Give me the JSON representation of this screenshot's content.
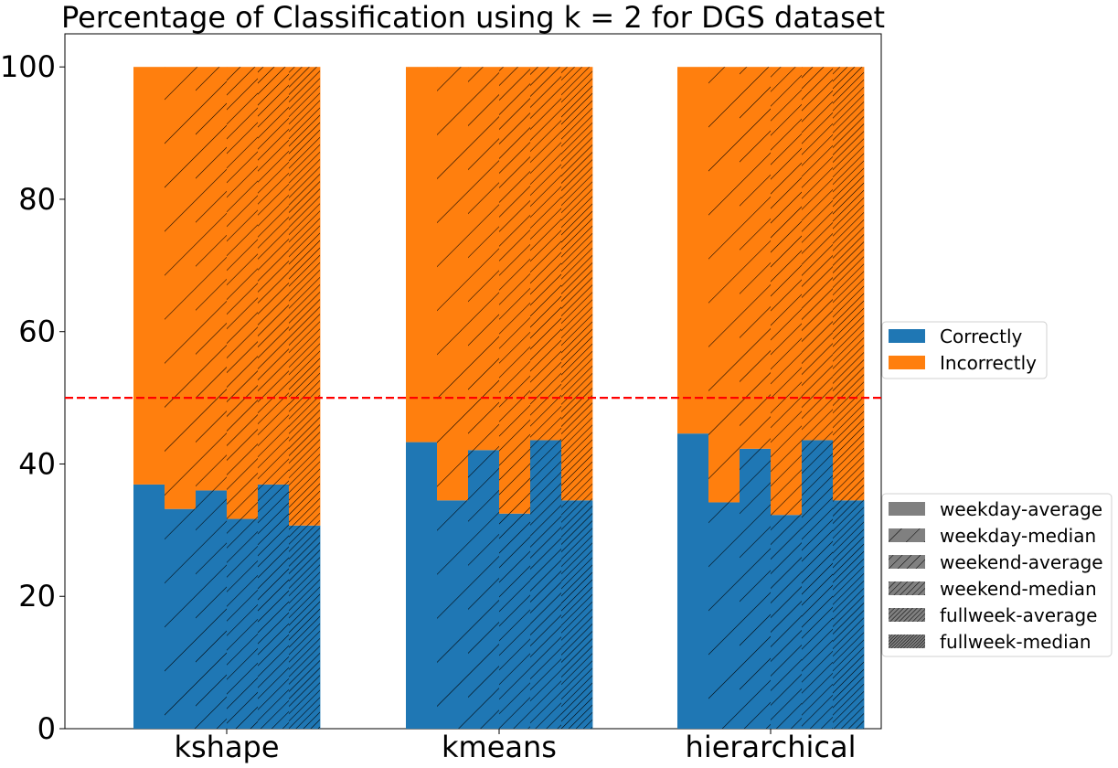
{
  "chart_data": {
    "type": "bar",
    "title": "Percentage of Classification using k = 2 for DGS dataset",
    "xlabel": "",
    "ylabel": "",
    "ylim": [
      0,
      105
    ],
    "yticks": [
      0,
      20,
      40,
      60,
      80,
      100
    ],
    "categories": [
      "kshape",
      "kmeans",
      "hierarchical"
    ],
    "variants": [
      "weekday-average",
      "weekday-median",
      "weekend-average",
      "weekend-median",
      "fullweek-average",
      "fullweek-median"
    ],
    "series": [
      {
        "name": "Correctly",
        "color": "#1f77b4",
        "values": [
          [
            36.9,
            33.2,
            36.0,
            31.7,
            36.9,
            30.7
          ],
          [
            43.3,
            34.5,
            42.1,
            32.5,
            43.6,
            34.5
          ],
          [
            44.6,
            34.2,
            42.3,
            32.3,
            43.6,
            34.5
          ]
        ]
      },
      {
        "name": "Incorrectly",
        "color": "#ff7f0e",
        "values": [
          [
            63.1,
            66.8,
            64.0,
            68.3,
            63.1,
            69.3
          ],
          [
            56.7,
            65.5,
            57.9,
            67.5,
            56.4,
            65.5
          ],
          [
            55.4,
            65.8,
            57.7,
            67.7,
            56.4,
            65.5
          ]
        ]
      }
    ],
    "reference_line": {
      "y": 50,
      "color": "#ff0000",
      "style": "dashed"
    },
    "legend_placement": "right",
    "grid": false
  }
}
